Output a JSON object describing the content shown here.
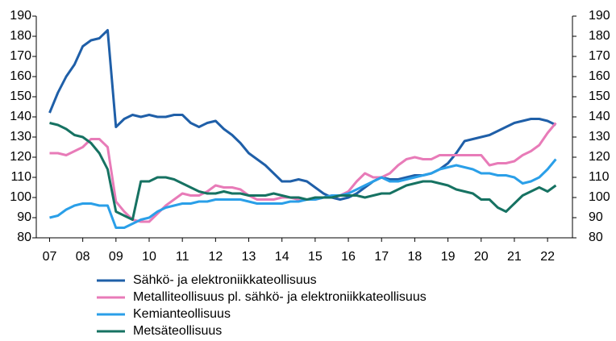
{
  "chart_data": {
    "type": "line",
    "x": [
      7,
      7.25,
      7.5,
      7.75,
      8,
      8.25,
      8.5,
      8.75,
      9,
      9.25,
      9.5,
      9.75,
      10,
      10.25,
      10.5,
      10.75,
      11,
      11.25,
      11.5,
      11.75,
      12,
      12.25,
      12.5,
      12.75,
      13,
      13.25,
      13.5,
      13.75,
      14,
      14.25,
      14.5,
      14.75,
      15,
      15.25,
      15.5,
      15.75,
      16,
      16.25,
      16.5,
      16.75,
      17,
      17.25,
      17.5,
      17.75,
      18,
      18.25,
      18.5,
      18.75,
      19,
      19.25,
      19.5,
      19.75,
      20,
      20.25,
      20.5,
      20.75,
      21,
      21.25,
      21.5,
      21.75,
      22,
      22.25
    ],
    "series": [
      {
        "name": "Sähkö- ja elektroniikkateollisuus",
        "color": "#1f5fa8",
        "values": [
          142,
          152,
          160,
          166,
          175,
          178,
          179,
          183,
          135,
          139,
          141,
          140,
          141,
          140,
          140,
          141,
          141,
          137,
          135,
          137,
          138,
          134,
          131,
          127,
          122,
          119,
          116,
          112,
          108,
          108,
          109,
          108,
          105,
          102,
          100,
          99,
          100,
          102,
          105,
          108,
          110,
          109,
          109,
          110,
          111,
          111,
          112,
          114,
          117,
          122,
          128,
          129,
          130,
          131,
          133,
          135,
          137,
          138,
          139,
          139,
          138,
          136
        ]
      },
      {
        "name": "Metalliteollisuus pl. sähkö- ja elektroniikkateollisuus",
        "color": "#e87bb8",
        "values": [
          122,
          122,
          121,
          123,
          125,
          129,
          129,
          125,
          98,
          93,
          89,
          88,
          88,
          92,
          96,
          99,
          102,
          101,
          101,
          103,
          106,
          105,
          105,
          104,
          101,
          99,
          99,
          99,
          100,
          100,
          99,
          99,
          99,
          100,
          100,
          101,
          103,
          108,
          112,
          110,
          110,
          112,
          116,
          119,
          120,
          119,
          119,
          121,
          121,
          121,
          121,
          121,
          121,
          116,
          117,
          117,
          118,
          121,
          123,
          126,
          132,
          137
        ]
      },
      {
        "name": "Kemianteollisuus",
        "color": "#2a9fe8",
        "values": [
          90,
          91,
          94,
          96,
          97,
          97,
          96,
          96,
          85,
          85,
          87,
          89,
          90,
          93,
          95,
          96,
          97,
          97,
          98,
          98,
          99,
          99,
          99,
          99,
          98,
          97,
          97,
          97,
          97,
          98,
          98,
          99,
          99,
          100,
          101,
          101,
          102,
          104,
          106,
          108,
          110,
          108,
          108,
          109,
          110,
          111,
          112,
          114,
          115,
          116,
          115,
          114,
          112,
          112,
          111,
          111,
          110,
          107,
          108,
          110,
          114,
          119
        ]
      },
      {
        "name": "Metsäteollisuus",
        "color": "#167262",
        "values": [
          137,
          136,
          134,
          131,
          130,
          127,
          122,
          114,
          93,
          91,
          89,
          108,
          108,
          110,
          110,
          109,
          107,
          105,
          103,
          102,
          102,
          103,
          102,
          102,
          101,
          101,
          101,
          102,
          101,
          100,
          100,
          99,
          100,
          100,
          100,
          101,
          101,
          101,
          100,
          101,
          102,
          102,
          104,
          106,
          107,
          108,
          108,
          107,
          106,
          104,
          103,
          102,
          99,
          99,
          95,
          93,
          97,
          101,
          103,
          105,
          103,
          106
        ]
      }
    ],
    "xlim": [
      6.6,
      22.75
    ],
    "xticks": [
      {
        "value": 7,
        "label": "07"
      },
      {
        "value": 8,
        "label": "08"
      },
      {
        "value": 9,
        "label": "09"
      },
      10,
      11,
      12,
      13,
      14,
      15,
      16,
      17,
      18,
      19,
      20,
      21,
      22
    ],
    "ylim": [
      80,
      190
    ],
    "yticks": [
      80,
      90,
      100,
      110,
      120,
      130,
      140,
      150,
      160,
      170,
      180,
      190
    ],
    "y2lim": [
      80,
      190
    ],
    "y2ticks": [
      80,
      90,
      100,
      110,
      120,
      130,
      140,
      150,
      160,
      170,
      180,
      190
    ]
  }
}
